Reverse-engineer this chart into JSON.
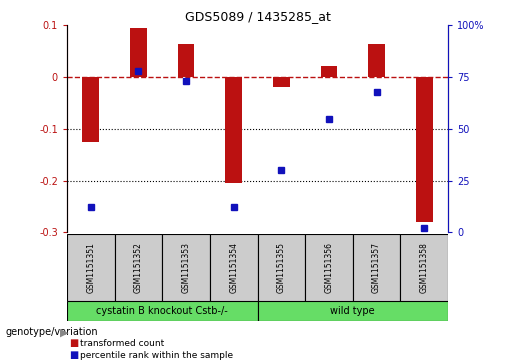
{
  "title": "GDS5089 / 1435285_at",
  "samples": [
    "GSM1151351",
    "GSM1151352",
    "GSM1151353",
    "GSM1151354",
    "GSM1151355",
    "GSM1151356",
    "GSM1151357",
    "GSM1151358"
  ],
  "bar_values": [
    -0.125,
    0.095,
    0.065,
    -0.205,
    -0.02,
    0.022,
    0.065,
    -0.28
  ],
  "dot_values_pct": [
    12,
    78,
    73,
    12,
    30,
    55,
    68,
    2
  ],
  "ylim_left": [
    -0.3,
    0.1
  ],
  "ylim_right": [
    0,
    100
  ],
  "bar_color": "#bb1111",
  "dot_color": "#1111bb",
  "right_ticks": [
    0,
    25,
    50,
    75,
    100
  ],
  "right_tick_labels": [
    "0",
    "25",
    "50",
    "75",
    "100%"
  ],
  "left_ticks": [
    -0.3,
    -0.2,
    -0.1,
    0.0,
    0.1
  ],
  "left_tick_labels": [
    "-0.3",
    "-0.2",
    "-0.1",
    "0",
    "0.1"
  ],
  "group1_label": "cystatin B knockout Cstb-/-",
  "group2_label": "wild type",
  "group1_indices": [
    0,
    1,
    2,
    3
  ],
  "group2_indices": [
    4,
    5,
    6,
    7
  ],
  "group_color": "#66dd66",
  "sample_bg_color": "#cccccc",
  "genotype_label": "genotype/variation",
  "legend_bar_label": "transformed count",
  "legend_dot_label": "percentile rank within the sample",
  "bar_width": 0.35
}
